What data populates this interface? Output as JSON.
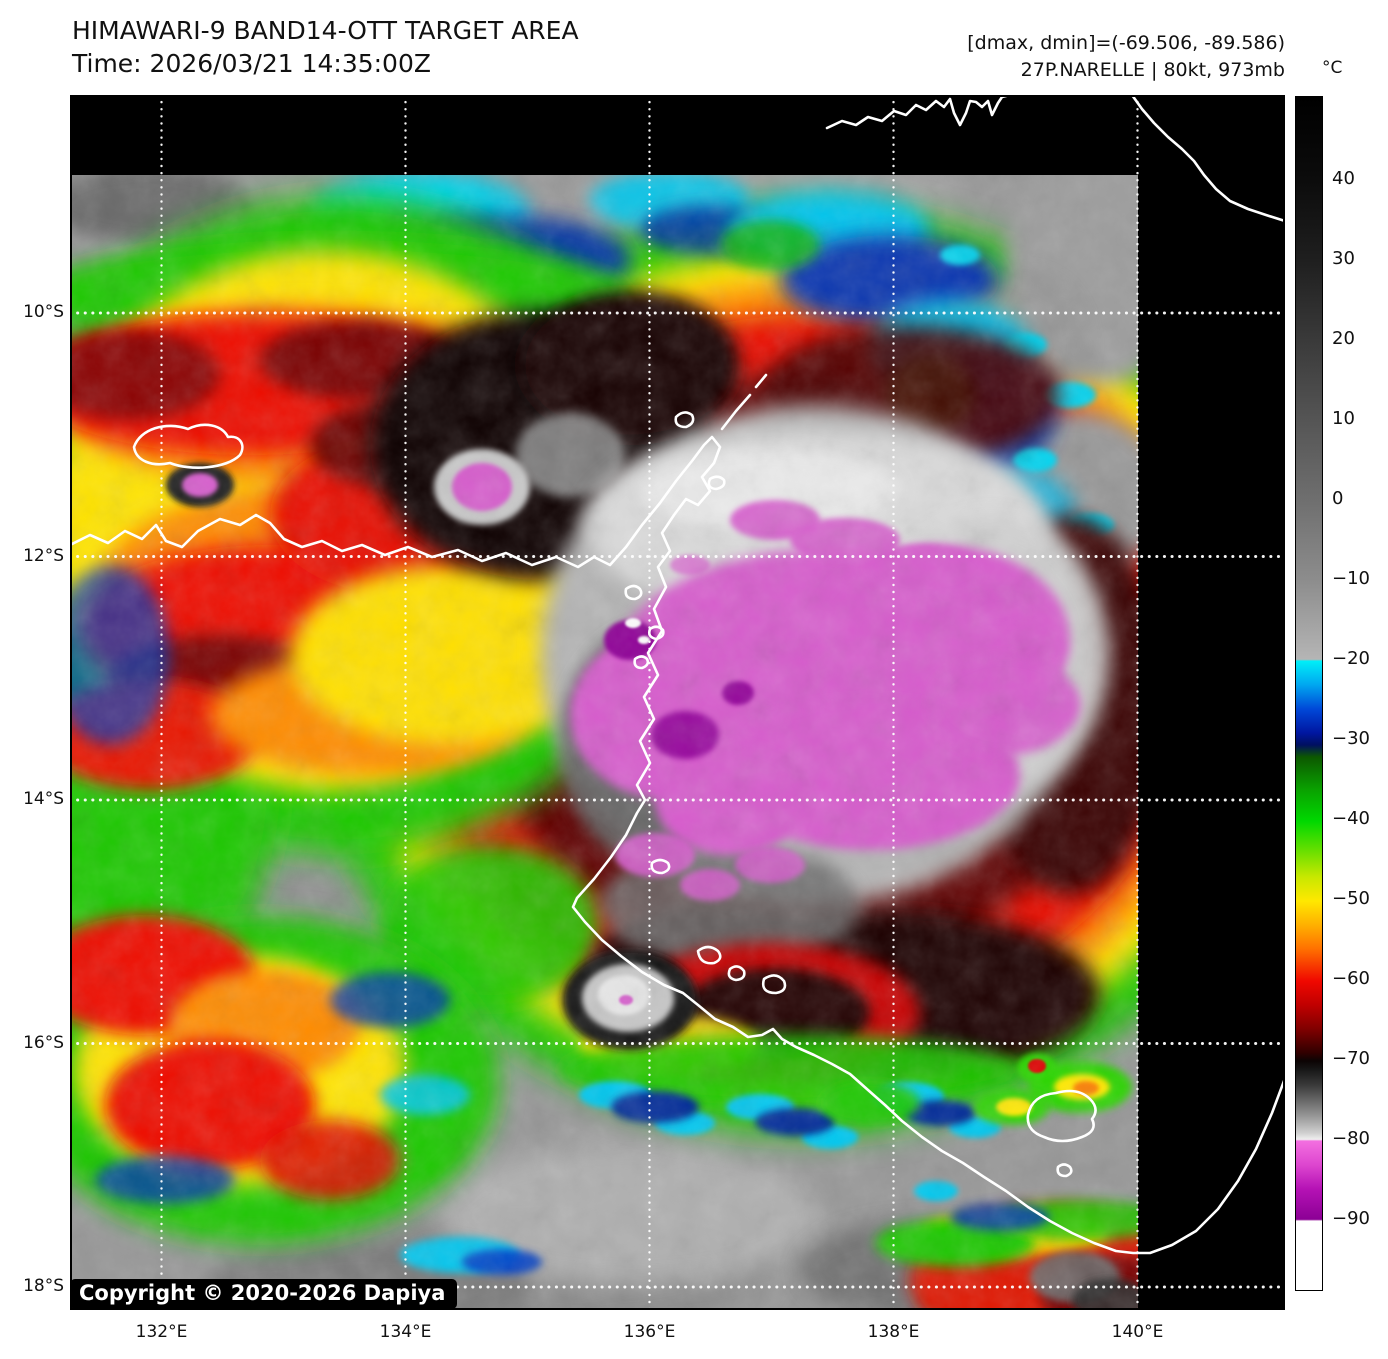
{
  "header": {
    "title": "HIMAWARI-9 BAND14-OTT TARGET AREA",
    "time_label": "Time: 2026/03/21 14:35:00Z",
    "dmax_dmin": "[dmax, dmin]=(-69.506, -89.586)",
    "storm_info": "27P.NARELLE | 80kt, 973mb"
  },
  "map": {
    "lat_ticks": [
      "10°S",
      "12°S",
      "14°S",
      "16°S",
      "18°S"
    ],
    "lon_ticks": [
      "132°E",
      "134°E",
      "136°E",
      "138°E",
      "140°E"
    ],
    "copyright": "Copyright © 2020-2026 Dapiya"
  },
  "colorbar": {
    "unit": "°C",
    "ticks": [
      {
        "label": "40",
        "value": 40
      },
      {
        "label": "30",
        "value": 30
      },
      {
        "label": "20",
        "value": 20
      },
      {
        "label": "10",
        "value": 10
      },
      {
        "label": "0",
        "value": 0
      },
      {
        "label": "−10",
        "value": -10
      },
      {
        "label": "−20",
        "value": -20
      },
      {
        "label": "−30",
        "value": -30
      },
      {
        "label": "−40",
        "value": -40
      },
      {
        "label": "−50",
        "value": -50
      },
      {
        "label": "−60",
        "value": -60
      },
      {
        "label": "−70",
        "value": -70
      },
      {
        "label": "−80",
        "value": -80
      },
      {
        "label": "−90",
        "value": -90
      }
    ],
    "gradient": [
      [
        50.5,
        "#000000"
      ],
      [
        40,
        "#0c0c0c"
      ],
      [
        30,
        "#1f1f1f"
      ],
      [
        20,
        "#3a3a3a"
      ],
      [
        10,
        "#555555"
      ],
      [
        0,
        "#6f6f6f"
      ],
      [
        -10,
        "#8d8d8d"
      ],
      [
        -19.8,
        "#b5b5b5"
      ],
      [
        -20,
        "#00eef8"
      ],
      [
        -23,
        "#00a6f0"
      ],
      [
        -26,
        "#0048d8"
      ],
      [
        -29,
        "#0016a0"
      ],
      [
        -30.5,
        "#001060"
      ],
      [
        -32,
        "#0c5800"
      ],
      [
        -36,
        "#0aa000"
      ],
      [
        -40,
        "#00d800"
      ],
      [
        -44,
        "#70e000"
      ],
      [
        -47,
        "#c8e800"
      ],
      [
        -50,
        "#ffe800"
      ],
      [
        -53,
        "#ffb000"
      ],
      [
        -56,
        "#ff7000"
      ],
      [
        -60,
        "#f00800"
      ],
      [
        -63,
        "#c00000"
      ],
      [
        -66,
        "#800000"
      ],
      [
        -69,
        "#300000"
      ],
      [
        -70,
        "#0c0404"
      ],
      [
        -71,
        "#161616"
      ],
      [
        -73,
        "#3a3a3a"
      ],
      [
        -75,
        "#6a6a6a"
      ],
      [
        -77,
        "#9a9a9a"
      ],
      [
        -79,
        "#d0d0d0"
      ],
      [
        -79.8,
        "#efefef"
      ],
      [
        -80,
        "#f36fe0"
      ],
      [
        -83,
        "#dd46cf"
      ],
      [
        -86,
        "#b512b5"
      ],
      [
        -89.8,
        "#8c0095"
      ],
      [
        -90,
        "#ffffff"
      ],
      [
        -98.6,
        "#ffffff"
      ]
    ]
  },
  "palette": {
    "warm_gray": "#9a9a9a",
    "cold_cyan": "#00d2f0",
    "cold_navy": "#0032a8",
    "cold_green": "#1ec800",
    "cold_yellow": "#ffe400",
    "cold_orange": "#ff8c00",
    "cold_red": "#e80800",
    "cold_darkred": "#600000",
    "cold_black": "#0a0202",
    "overshoot_gray": "#b4b4b4",
    "coldest_magenta": "#d65ccc",
    "coldest_purple": "#8e0096",
    "coastline": "#ffffff",
    "background": "#000000"
  }
}
